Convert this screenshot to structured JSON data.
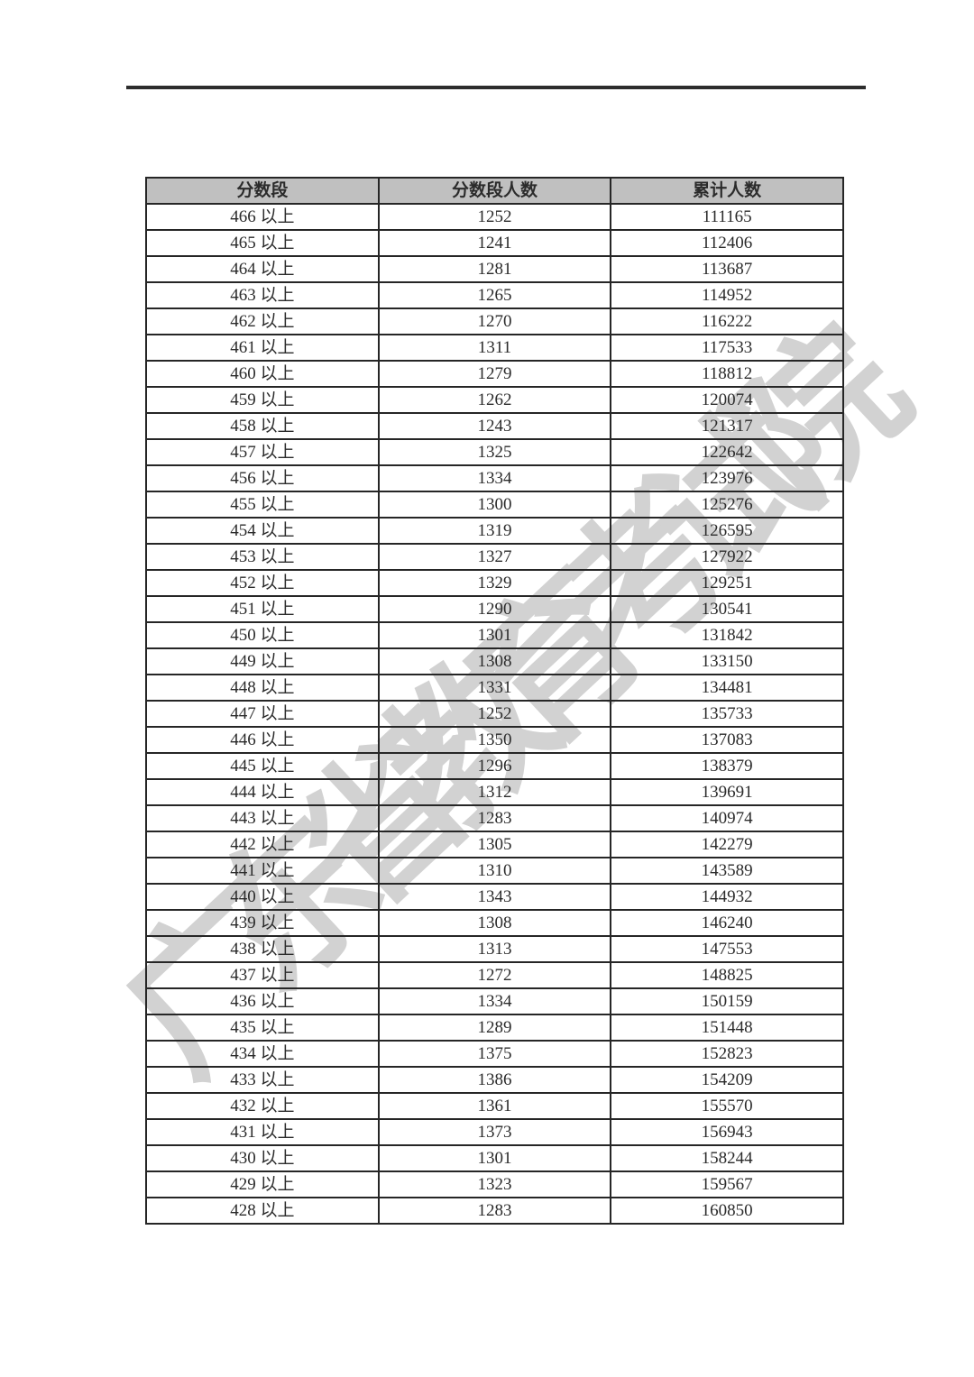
{
  "watermark": {
    "text": "广东省教育考试院",
    "color": "#c7c7c7"
  },
  "decor": {
    "top_rule_color": "#2d2d2d",
    "header_bg": "#c0c0c0",
    "border_color": "#262626",
    "text_color": "#2b2b2b"
  },
  "table": {
    "headers": [
      "分数段",
      "分数段人数",
      "累计人数"
    ],
    "rows": [
      {
        "segment": "466 以上",
        "count": "1252",
        "cumulative": "111165"
      },
      {
        "segment": "465 以上",
        "count": "1241",
        "cumulative": "112406"
      },
      {
        "segment": "464 以上",
        "count": "1281",
        "cumulative": "113687"
      },
      {
        "segment": "463 以上",
        "count": "1265",
        "cumulative": "114952"
      },
      {
        "segment": "462 以上",
        "count": "1270",
        "cumulative": "116222"
      },
      {
        "segment": "461 以上",
        "count": "1311",
        "cumulative": "117533"
      },
      {
        "segment": "460 以上",
        "count": "1279",
        "cumulative": "118812"
      },
      {
        "segment": "459 以上",
        "count": "1262",
        "cumulative": "120074"
      },
      {
        "segment": "458 以上",
        "count": "1243",
        "cumulative": "121317"
      },
      {
        "segment": "457 以上",
        "count": "1325",
        "cumulative": "122642"
      },
      {
        "segment": "456 以上",
        "count": "1334",
        "cumulative": "123976"
      },
      {
        "segment": "455 以上",
        "count": "1300",
        "cumulative": "125276"
      },
      {
        "segment": "454 以上",
        "count": "1319",
        "cumulative": "126595"
      },
      {
        "segment": "453 以上",
        "count": "1327",
        "cumulative": "127922"
      },
      {
        "segment": "452 以上",
        "count": "1329",
        "cumulative": "129251"
      },
      {
        "segment": "451 以上",
        "count": "1290",
        "cumulative": "130541"
      },
      {
        "segment": "450 以上",
        "count": "1301",
        "cumulative": "131842"
      },
      {
        "segment": "449 以上",
        "count": "1308",
        "cumulative": "133150"
      },
      {
        "segment": "448 以上",
        "count": "1331",
        "cumulative": "134481"
      },
      {
        "segment": "447 以上",
        "count": "1252",
        "cumulative": "135733"
      },
      {
        "segment": "446 以上",
        "count": "1350",
        "cumulative": "137083"
      },
      {
        "segment": "445 以上",
        "count": "1296",
        "cumulative": "138379"
      },
      {
        "segment": "444 以上",
        "count": "1312",
        "cumulative": "139691"
      },
      {
        "segment": "443 以上",
        "count": "1283",
        "cumulative": "140974"
      },
      {
        "segment": "442 以上",
        "count": "1305",
        "cumulative": "142279"
      },
      {
        "segment": "441 以上",
        "count": "1310",
        "cumulative": "143589"
      },
      {
        "segment": "440 以上",
        "count": "1343",
        "cumulative": "144932"
      },
      {
        "segment": "439 以上",
        "count": "1308",
        "cumulative": "146240"
      },
      {
        "segment": "438 以上",
        "count": "1313",
        "cumulative": "147553"
      },
      {
        "segment": "437 以上",
        "count": "1272",
        "cumulative": "148825"
      },
      {
        "segment": "436 以上",
        "count": "1334",
        "cumulative": "150159"
      },
      {
        "segment": "435 以上",
        "count": "1289",
        "cumulative": "151448"
      },
      {
        "segment": "434 以上",
        "count": "1375",
        "cumulative": "152823"
      },
      {
        "segment": "433 以上",
        "count": "1386",
        "cumulative": "154209"
      },
      {
        "segment": "432 以上",
        "count": "1361",
        "cumulative": "155570"
      },
      {
        "segment": "431 以上",
        "count": "1373",
        "cumulative": "156943"
      },
      {
        "segment": "430 以上",
        "count": "1301",
        "cumulative": "158244"
      },
      {
        "segment": "429 以上",
        "count": "1323",
        "cumulative": "159567"
      },
      {
        "segment": "428 以上",
        "count": "1283",
        "cumulative": "160850"
      }
    ]
  }
}
